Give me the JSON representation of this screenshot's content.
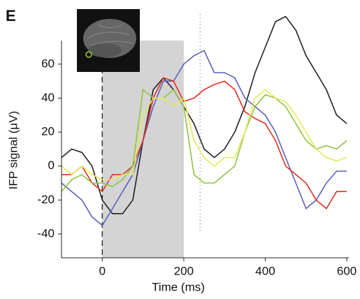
{
  "chart_data": {
    "type": "line",
    "panel_label": "E",
    "xlabel": "Time (ms)",
    "ylabel": "IFP signal (μV)",
    "x": [
      -100,
      -75,
      -50,
      -25,
      0,
      25,
      50,
      75,
      100,
      125,
      150,
      175,
      200,
      225,
      250,
      275,
      300,
      325,
      350,
      375,
      400,
      425,
      450,
      475,
      500,
      525,
      550,
      575,
      600
    ],
    "series": [
      {
        "color": "#222222",
        "values": [
          5,
          10,
          8,
          0,
          -20,
          -28,
          -28,
          -20,
          15,
          45,
          52,
          45,
          35,
          25,
          10,
          5,
          10,
          20,
          35,
          55,
          70,
          85,
          88,
          80,
          65,
          55,
          45,
          30,
          25
        ]
      },
      {
        "color": "#5a62b8",
        "values": [
          -10,
          -15,
          -20,
          -30,
          -35,
          -25,
          -15,
          -5,
          15,
          35,
          50,
          50,
          60,
          65,
          68,
          55,
          55,
          52,
          40,
          35,
          30,
          20,
          5,
          -10,
          -25,
          -20,
          -10,
          -3,
          -3
        ]
      },
      {
        "color": "#e03020",
        "values": [
          -5,
          -5,
          0,
          -10,
          -15,
          -5,
          -5,
          0,
          15,
          40,
          52,
          50,
          38,
          40,
          45,
          48,
          50,
          45,
          32,
          28,
          25,
          15,
          0,
          -5,
          -10,
          -20,
          -25,
          -15,
          -15
        ]
      },
      {
        "color": "#8cc63e",
        "values": [
          -15,
          -8,
          -5,
          -10,
          -10,
          -12,
          -8,
          0,
          45,
          40,
          40,
          45,
          35,
          -5,
          -10,
          -10,
          -5,
          0,
          20,
          35,
          42,
          40,
          35,
          25,
          15,
          10,
          12,
          10,
          15
        ]
      },
      {
        "color": "#e8e85a",
        "values": [
          0,
          -5,
          0,
          -5,
          -8,
          -8,
          -5,
          -5,
          30,
          40,
          40,
          35,
          40,
          15,
          5,
          0,
          5,
          5,
          20,
          40,
          45,
          40,
          38,
          30,
          20,
          10,
          5,
          3,
          5
        ]
      }
    ],
    "xlim": [
      -100,
      605
    ],
    "ylim": [
      -54,
      92
    ],
    "xticks": [
      0,
      200,
      400,
      600
    ],
    "yticks": [
      -40,
      -20,
      0,
      20,
      40,
      60
    ],
    "shade": [
      0,
      200
    ],
    "onset_line": 0,
    "dotted_line": 240
  }
}
